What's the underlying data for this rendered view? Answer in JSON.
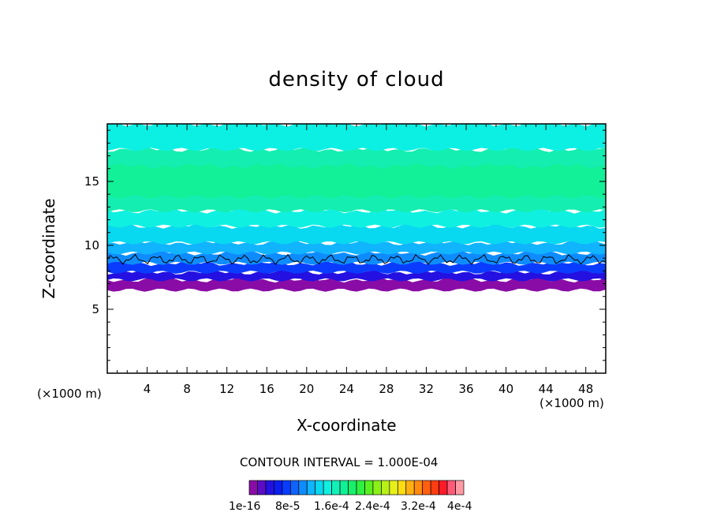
{
  "chart_data": {
    "type": "heatmap",
    "title": "density of cloud",
    "xlabel": "X-coordinate",
    "ylabel": "Z-coordinate",
    "x_unit": "(×1000 m)",
    "y_unit": "(×1000 m)",
    "xlim": [
      0,
      50
    ],
    "ylim": [
      0,
      19.5
    ],
    "x_ticks": [
      "4",
      "8",
      "12",
      "16",
      "20",
      "24",
      "28",
      "32",
      "36",
      "40",
      "44",
      "48"
    ],
    "y_ticks": [
      "5",
      "10",
      "15"
    ],
    "contour_interval": "CONTOUR INTERVAL = 1.000E-04",
    "colorbar_labels": [
      "1e-16",
      "8e-5",
      "1.6e-4",
      "2.4e-4",
      "3.2e-4",
      "4e-4"
    ],
    "colorbar_colors": [
      "#8a0ca6",
      "#5c0cc4",
      "#2410e0",
      "#0a1ef0",
      "#0a3cff",
      "#0f64ff",
      "#0e8cff",
      "#10b4ff",
      "#08d8f0",
      "#10f0e0",
      "#12f0b8",
      "#10f096",
      "#18f06c",
      "#2ef040",
      "#5af020",
      "#8af018",
      "#b8f018",
      "#e6f018",
      "#ffdc10",
      "#ffb010",
      "#ff8a10",
      "#ff6010",
      "#ff3c10",
      "#ff1a28",
      "#ff5a78",
      "#ff9aa4"
    ],
    "layers": [
      {
        "z_bottom": 6.5,
        "z_top": 7.3,
        "color": "#8a0ca6"
      },
      {
        "z_bottom": 7.3,
        "z_top": 7.9,
        "color": "#2410e0"
      },
      {
        "z_bottom": 7.9,
        "z_top": 8.6,
        "color": "#0a3cff"
      },
      {
        "z_bottom": 8.6,
        "z_top": 9.4,
        "color": "#0e8cff"
      },
      {
        "z_bottom": 9.4,
        "z_top": 10.2,
        "color": "#10b4ff"
      },
      {
        "z_bottom": 10.2,
        "z_top": 11.5,
        "color": "#08d8f0"
      },
      {
        "z_bottom": 11.5,
        "z_top": 12.7,
        "color": "#10f0e0"
      },
      {
        "z_bottom": 12.7,
        "z_top": 17.5,
        "color": "#14eeb0"
      },
      {
        "z_bottom": 13.8,
        "z_top": 16.2,
        "color": "#12f098"
      },
      {
        "z_bottom": 17.5,
        "z_top": 19.5,
        "color": "#0cf0e4"
      }
    ]
  }
}
